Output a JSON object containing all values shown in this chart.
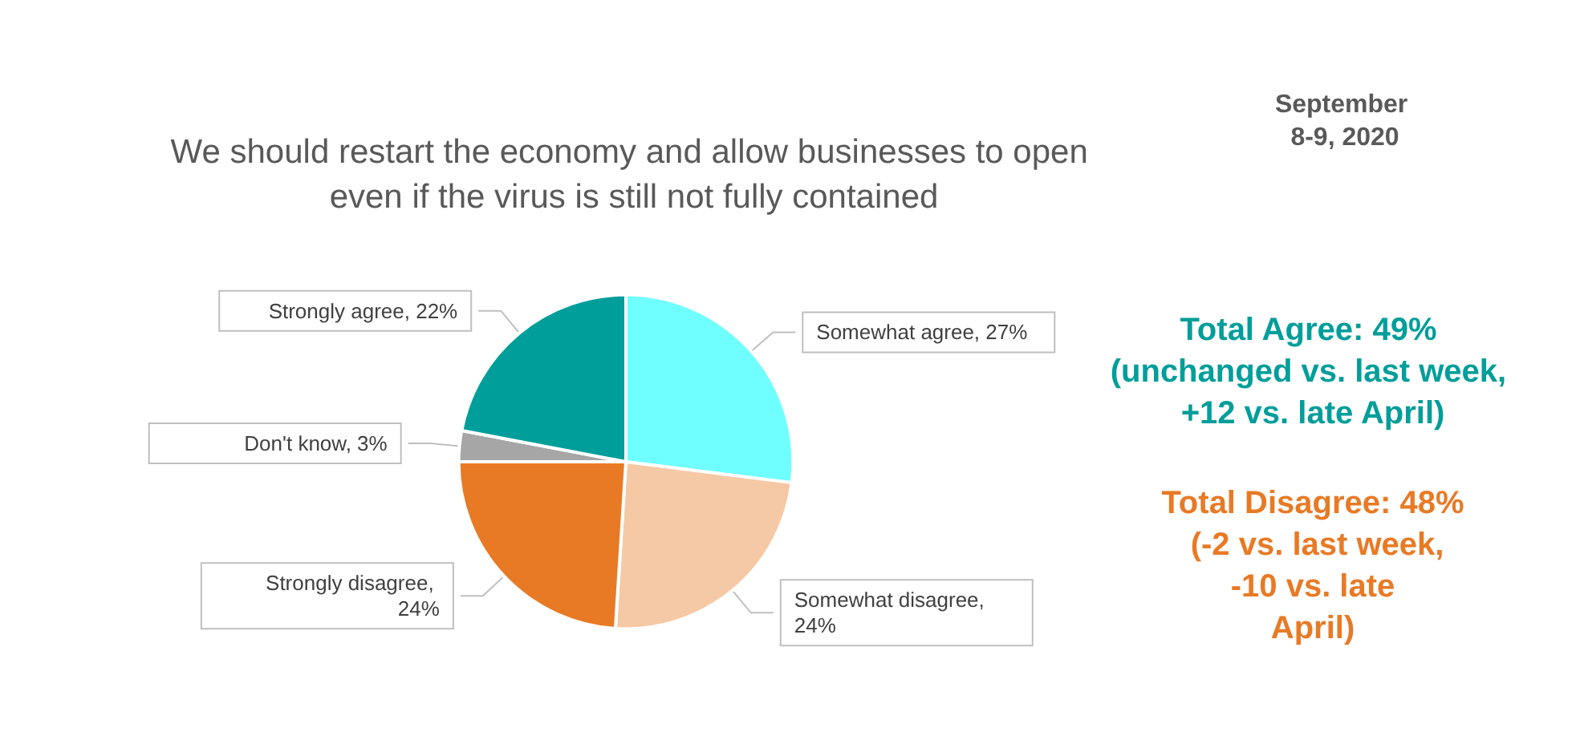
{
  "chart_data": {
    "type": "pie",
    "title": "We should restart the economy and allow businesses to open even if the virus is still not fully contained",
    "categories": [
      "Somewhat agree, 27%",
      "Somewhat disagree, 24%",
      "Strongly disagree, 24%",
      "Don't know, 3%",
      "Strongly agree, 22%"
    ],
    "values": [
      27,
      24,
      24,
      3,
      22
    ],
    "colors": [
      "#70ffff",
      "#f6c9a6",
      "#e87a25",
      "#a6a6a6",
      "#009e9a"
    ],
    "annotations": [
      "September 8-9, 2020",
      "Total Agree: 49% (unchanged vs. last week, +12 vs. late April)",
      "Total Disagree: 48% (-2 vs. last week, -10 vs. late April)"
    ]
  }
}
